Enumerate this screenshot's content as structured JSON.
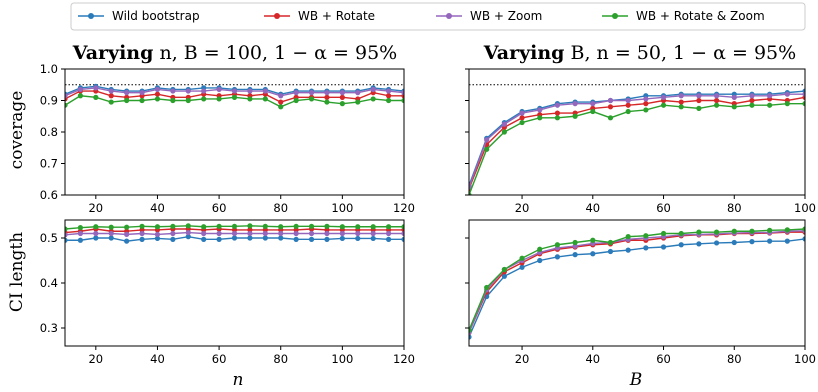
{
  "legend": [
    {
      "label": "Wild bootstrap",
      "color": "#2b7bba"
    },
    {
      "label": "WB + Rotate",
      "color": "#d62728"
    },
    {
      "label": "WB + Zoom",
      "color": "#9467bd"
    },
    {
      "label": "WB + Rotate & Zoom",
      "color": "#2ca02c"
    }
  ],
  "titles": {
    "left_prefix": "Varying",
    "left_rest": "n,  B = 100,  1 − α = 95%",
    "right_prefix": "Varying",
    "right_rest": "B,  n = 50,  1 − α = 95%"
  },
  "axis_labels": {
    "coverage": "coverage",
    "ci_length": "CI length",
    "n": "n",
    "B": "B"
  },
  "chart_data": [
    {
      "id": "coverage-vs-n",
      "type": "line",
      "ylabel": "coverage",
      "xlim": [
        10,
        120
      ],
      "ylim": [
        0.6,
        1.0
      ],
      "xticks": [
        20,
        40,
        60,
        80,
        100,
        120
      ],
      "yticks": [
        0.6,
        0.7,
        0.8,
        0.9,
        1.0
      ],
      "ytick_labels": [
        "0.6",
        "0.7",
        "0.8",
        "0.9",
        "1.0"
      ],
      "reference_line": 0.95,
      "x": [
        10,
        15,
        20,
        25,
        30,
        35,
        40,
        45,
        50,
        55,
        60,
        65,
        70,
        75,
        80,
        85,
        90,
        95,
        100,
        105,
        110,
        115,
        120
      ],
      "series": [
        {
          "name": "Wild bootstrap",
          "color": "#2b7bba",
          "values": [
            0.92,
            0.94,
            0.945,
            0.935,
            0.93,
            0.93,
            0.94,
            0.935,
            0.935,
            0.94,
            0.94,
            0.935,
            0.935,
            0.935,
            0.92,
            0.93,
            0.93,
            0.93,
            0.93,
            0.93,
            0.94,
            0.935,
            0.93
          ]
        },
        {
          "name": "WB + Rotate",
          "color": "#d62728",
          "values": [
            0.905,
            0.93,
            0.93,
            0.915,
            0.91,
            0.915,
            0.92,
            0.91,
            0.91,
            0.92,
            0.915,
            0.92,
            0.915,
            0.92,
            0.895,
            0.91,
            0.91,
            0.91,
            0.91,
            0.905,
            0.925,
            0.915,
            0.915
          ]
        },
        {
          "name": "WB + Zoom",
          "color": "#9467bd",
          "values": [
            0.915,
            0.935,
            0.94,
            0.93,
            0.925,
            0.925,
            0.935,
            0.93,
            0.93,
            0.93,
            0.935,
            0.93,
            0.93,
            0.93,
            0.915,
            0.925,
            0.925,
            0.925,
            0.925,
            0.925,
            0.935,
            0.93,
            0.925
          ]
        },
        {
          "name": "WB + Rotate & Zoom",
          "color": "#2ca02c",
          "values": [
            0.885,
            0.915,
            0.91,
            0.895,
            0.9,
            0.9,
            0.905,
            0.9,
            0.9,
            0.905,
            0.905,
            0.91,
            0.905,
            0.905,
            0.88,
            0.9,
            0.905,
            0.895,
            0.89,
            0.895,
            0.905,
            0.9,
            0.9
          ]
        }
      ]
    },
    {
      "id": "coverage-vs-B",
      "type": "line",
      "xlim": [
        5,
        100
      ],
      "ylim": [
        0.6,
        1.0
      ],
      "xticks": [
        20,
        40,
        60,
        80,
        100
      ],
      "yticks": [
        0.6,
        0.7,
        0.8,
        0.9,
        1.0
      ],
      "reference_line": 0.95,
      "x": [
        5,
        10,
        15,
        20,
        25,
        30,
        35,
        40,
        45,
        50,
        55,
        60,
        65,
        70,
        75,
        80,
        85,
        90,
        95,
        100
      ],
      "series": [
        {
          "name": "Wild bootstrap",
          "color": "#2b7bba",
          "values": [
            0.63,
            0.78,
            0.83,
            0.865,
            0.875,
            0.89,
            0.895,
            0.895,
            0.9,
            0.905,
            0.915,
            0.915,
            0.92,
            0.92,
            0.92,
            0.92,
            0.92,
            0.92,
            0.925,
            0.93
          ]
        },
        {
          "name": "WB + Rotate",
          "color": "#d62728",
          "values": [
            0.62,
            0.76,
            0.815,
            0.845,
            0.855,
            0.86,
            0.86,
            0.875,
            0.88,
            0.885,
            0.89,
            0.9,
            0.895,
            0.9,
            0.9,
            0.89,
            0.9,
            0.905,
            0.9,
            0.91
          ]
        },
        {
          "name": "WB + Zoom",
          "color": "#9467bd",
          "values": [
            0.625,
            0.775,
            0.825,
            0.86,
            0.87,
            0.885,
            0.89,
            0.89,
            0.9,
            0.9,
            0.905,
            0.91,
            0.915,
            0.915,
            0.915,
            0.91,
            0.915,
            0.915,
            0.92,
            0.92
          ]
        },
        {
          "name": "WB + Rotate & Zoom",
          "color": "#2ca02c",
          "values": [
            0.6,
            0.745,
            0.8,
            0.83,
            0.845,
            0.845,
            0.85,
            0.865,
            0.845,
            0.865,
            0.87,
            0.885,
            0.88,
            0.875,
            0.885,
            0.88,
            0.885,
            0.885,
            0.89,
            0.89
          ]
        }
      ]
    },
    {
      "id": "ci-length-vs-n",
      "type": "line",
      "ylabel": "CI length",
      "xlabel": "n",
      "xlim": [
        10,
        120
      ],
      "ylim": [
        0.26,
        0.54
      ],
      "xticks": [
        20,
        40,
        60,
        80,
        100,
        120
      ],
      "yticks": [
        0.3,
        0.4,
        0.5
      ],
      "ytick_labels": [
        "0.3",
        "0.4",
        "0.5"
      ],
      "x": [
        10,
        15,
        20,
        25,
        30,
        35,
        40,
        45,
        50,
        55,
        60,
        65,
        70,
        75,
        80,
        85,
        90,
        95,
        100,
        105,
        110,
        115,
        120
      ],
      "series": [
        {
          "name": "Wild bootstrap",
          "color": "#2b7bba",
          "values": [
            0.495,
            0.495,
            0.5,
            0.5,
            0.493,
            0.497,
            0.499,
            0.497,
            0.503,
            0.497,
            0.497,
            0.5,
            0.5,
            0.5,
            0.5,
            0.497,
            0.497,
            0.497,
            0.499,
            0.499,
            0.499,
            0.497,
            0.497
          ]
        },
        {
          "name": "WB + Rotate",
          "color": "#d62728",
          "values": [
            0.512,
            0.515,
            0.52,
            0.515,
            0.515,
            0.518,
            0.518,
            0.52,
            0.52,
            0.518,
            0.52,
            0.518,
            0.518,
            0.518,
            0.518,
            0.518,
            0.52,
            0.518,
            0.518,
            0.518,
            0.518,
            0.518,
            0.518
          ]
        },
        {
          "name": "WB + Zoom",
          "color": "#9467bd",
          "values": [
            0.507,
            0.51,
            0.51,
            0.51,
            0.508,
            0.51,
            0.508,
            0.51,
            0.512,
            0.51,
            0.51,
            0.51,
            0.51,
            0.51,
            0.51,
            0.51,
            0.51,
            0.51,
            0.51,
            0.51,
            0.51,
            0.51,
            0.51
          ]
        },
        {
          "name": "WB + Rotate & Zoom",
          "color": "#2ca02c",
          "values": [
            0.52,
            0.523,
            0.525,
            0.524,
            0.524,
            0.526,
            0.525,
            0.526,
            0.527,
            0.525,
            0.526,
            0.526,
            0.527,
            0.526,
            0.525,
            0.526,
            0.526,
            0.526,
            0.525,
            0.525,
            0.525,
            0.525,
            0.525
          ]
        }
      ]
    },
    {
      "id": "ci-length-vs-B",
      "type": "line",
      "xlabel": "B",
      "xlim": [
        5,
        100
      ],
      "ylim": [
        0.26,
        0.54
      ],
      "xticks": [
        20,
        40,
        60,
        80,
        100
      ],
      "yticks": [
        0.3,
        0.4,
        0.5
      ],
      "x": [
        5,
        10,
        15,
        20,
        25,
        30,
        35,
        40,
        45,
        50,
        55,
        60,
        65,
        70,
        75,
        80,
        85,
        90,
        95,
        100
      ],
      "series": [
        {
          "name": "Wild bootstrap",
          "color": "#2b7bba",
          "values": [
            0.28,
            0.37,
            0.415,
            0.435,
            0.45,
            0.458,
            0.463,
            0.465,
            0.47,
            0.473,
            0.478,
            0.48,
            0.485,
            0.487,
            0.489,
            0.49,
            0.492,
            0.493,
            0.493,
            0.498
          ]
        },
        {
          "name": "WB + Rotate",
          "color": "#d62728",
          "values": [
            0.29,
            0.38,
            0.425,
            0.445,
            0.465,
            0.475,
            0.48,
            0.485,
            0.487,
            0.495,
            0.495,
            0.5,
            0.505,
            0.507,
            0.507,
            0.51,
            0.51,
            0.511,
            0.513,
            0.513
          ]
        },
        {
          "name": "WB + Zoom",
          "color": "#9467bd",
          "values": [
            0.29,
            0.385,
            0.43,
            0.45,
            0.468,
            0.478,
            0.482,
            0.488,
            0.49,
            0.497,
            0.5,
            0.503,
            0.507,
            0.508,
            0.509,
            0.511,
            0.512,
            0.512,
            0.515,
            0.516
          ]
        },
        {
          "name": "WB + Rotate & Zoom",
          "color": "#2ca02c",
          "values": [
            0.295,
            0.39,
            0.43,
            0.455,
            0.475,
            0.485,
            0.49,
            0.495,
            0.49,
            0.503,
            0.505,
            0.51,
            0.51,
            0.513,
            0.513,
            0.515,
            0.515,
            0.517,
            0.518,
            0.52
          ]
        }
      ]
    }
  ]
}
